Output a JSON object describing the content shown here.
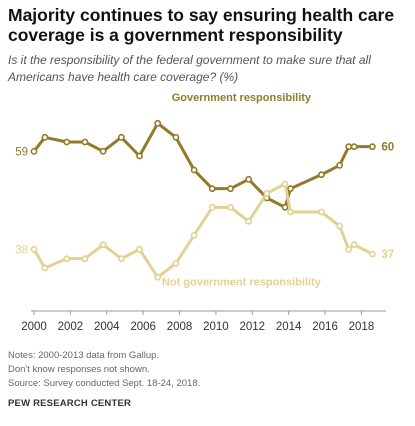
{
  "title": "Majority continues to say ensuring health care coverage is a government responsibility",
  "subtitle": "Is it the responsibility of the federal government to make sure that all Americans have health care coverage? (%)",
  "notes": [
    "Notes: 2000-2013 data from Gallup.",
    "Don't know responses not shown.",
    "Source: Survey conducted Sept. 18-24, 2018."
  ],
  "source_brand": "PEW RESEARCH CENTER",
  "colors": {
    "government": "#937a2a",
    "not_government": "#e2d193",
    "axis": "#999999"
  },
  "chart_data": {
    "type": "line",
    "title": "",
    "xlabel": "",
    "ylabel": "",
    "x_ticks": [
      2000,
      2002,
      2004,
      2006,
      2008,
      2010,
      2012,
      2014,
      2016,
      2018
    ],
    "xlim": [
      2000,
      2018.8
    ],
    "ylim": [
      25,
      70
    ],
    "grid": false,
    "legend": "inline labels",
    "series": [
      {
        "name": "Government responsibility",
        "color": "#937a2a",
        "points": [
          [
            2000.0,
            59
          ],
          [
            2000.6,
            62
          ],
          [
            2001.8,
            61
          ],
          [
            2002.8,
            61
          ],
          [
            2003.8,
            59
          ],
          [
            2004.8,
            62
          ],
          [
            2005.8,
            58
          ],
          [
            2006.8,
            65
          ],
          [
            2007.8,
            62
          ],
          [
            2008.8,
            55
          ],
          [
            2009.8,
            51
          ],
          [
            2010.8,
            51
          ],
          [
            2011.8,
            53
          ],
          [
            2012.8,
            49
          ],
          [
            2013.8,
            47
          ],
          [
            2014.1,
            51
          ],
          [
            2015.8,
            54
          ],
          [
            2016.8,
            56
          ],
          [
            2017.3,
            60
          ],
          [
            2017.6,
            60
          ],
          [
            2018.6,
            60
          ]
        ],
        "label_value": "60",
        "start_label": "59"
      },
      {
        "name": "Not government responsibility",
        "color": "#e2d193",
        "points": [
          [
            2000.0,
            38
          ],
          [
            2000.6,
            34
          ],
          [
            2001.8,
            36
          ],
          [
            2002.8,
            36
          ],
          [
            2003.8,
            39
          ],
          [
            2004.8,
            36
          ],
          [
            2005.8,
            38
          ],
          [
            2006.8,
            32
          ],
          [
            2007.8,
            35
          ],
          [
            2008.8,
            41
          ],
          [
            2009.8,
            47
          ],
          [
            2010.8,
            47
          ],
          [
            2011.8,
            44
          ],
          [
            2012.8,
            50
          ],
          [
            2013.8,
            52
          ],
          [
            2014.1,
            46
          ],
          [
            2015.8,
            46
          ],
          [
            2016.8,
            43
          ],
          [
            2017.3,
            38
          ],
          [
            2017.6,
            39
          ],
          [
            2018.6,
            37
          ]
        ],
        "label_value": "37",
        "start_label": "38"
      }
    ]
  }
}
